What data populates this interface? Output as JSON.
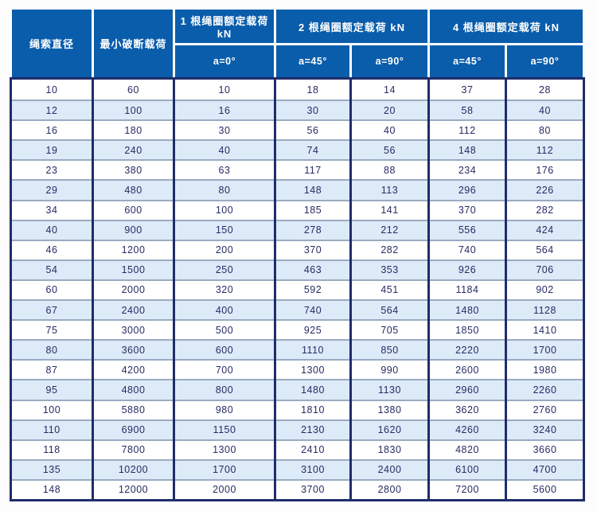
{
  "table": {
    "headers": {
      "rope_diameter": "绳索直径",
      "min_breaking_load": "最小破断载荷",
      "group_1_loop": "1 根绳圈额定载荷 kN",
      "group_2_loops": "2 根绳圈额定载荷 kN",
      "group_4_loops": "4 根绳圈额定载荷 kN",
      "angle_0": "a=0°",
      "angle_45": "a=45°",
      "angle_90": "a=90°"
    },
    "unit": "kN",
    "rows": [
      [
        10,
        60,
        10,
        18,
        14,
        37,
        28
      ],
      [
        12,
        100,
        16,
        30,
        20,
        58,
        40
      ],
      [
        16,
        180,
        30,
        56,
        40,
        112,
        80
      ],
      [
        19,
        240,
        40,
        74,
        56,
        148,
        112
      ],
      [
        23,
        380,
        63,
        117,
        88,
        234,
        176
      ],
      [
        29,
        480,
        80,
        148,
        113,
        296,
        226
      ],
      [
        34,
        600,
        100,
        185,
        141,
        370,
        282
      ],
      [
        40,
        900,
        150,
        278,
        212,
        556,
        424
      ],
      [
        46,
        1200,
        200,
        370,
        282,
        740,
        564
      ],
      [
        54,
        1500,
        250,
        463,
        353,
        926,
        706
      ],
      [
        60,
        2000,
        320,
        592,
        451,
        1184,
        902
      ],
      [
        67,
        2400,
        400,
        740,
        564,
        1480,
        1128
      ],
      [
        75,
        3000,
        500,
        925,
        705,
        1850,
        1410
      ],
      [
        80,
        3600,
        600,
        1110,
        850,
        2220,
        1700
      ],
      [
        87,
        4200,
        700,
        1300,
        990,
        2600,
        1980
      ],
      [
        95,
        4800,
        800,
        1480,
        1130,
        2960,
        2260
      ],
      [
        100,
        5880,
        980,
        1810,
        1380,
        3620,
        2760
      ],
      [
        110,
        6900,
        1150,
        2130,
        1620,
        4260,
        3240
      ],
      [
        118,
        7800,
        1300,
        2410,
        1830,
        4820,
        3660
      ],
      [
        135,
        10200,
        1700,
        3100,
        2400,
        6100,
        4700
      ],
      [
        148,
        12000,
        2000,
        3700,
        2800,
        7200,
        5600
      ]
    ]
  },
  "colors": {
    "header_bg": "#0a5dab",
    "header_text": "#ffffff",
    "grid_border_dark": "#1f2d6b",
    "row_divider": "#9aaac2",
    "row_stripe": "#ddeaf8",
    "row_bg": "#ffffff",
    "body_text": "#272c63"
  }
}
